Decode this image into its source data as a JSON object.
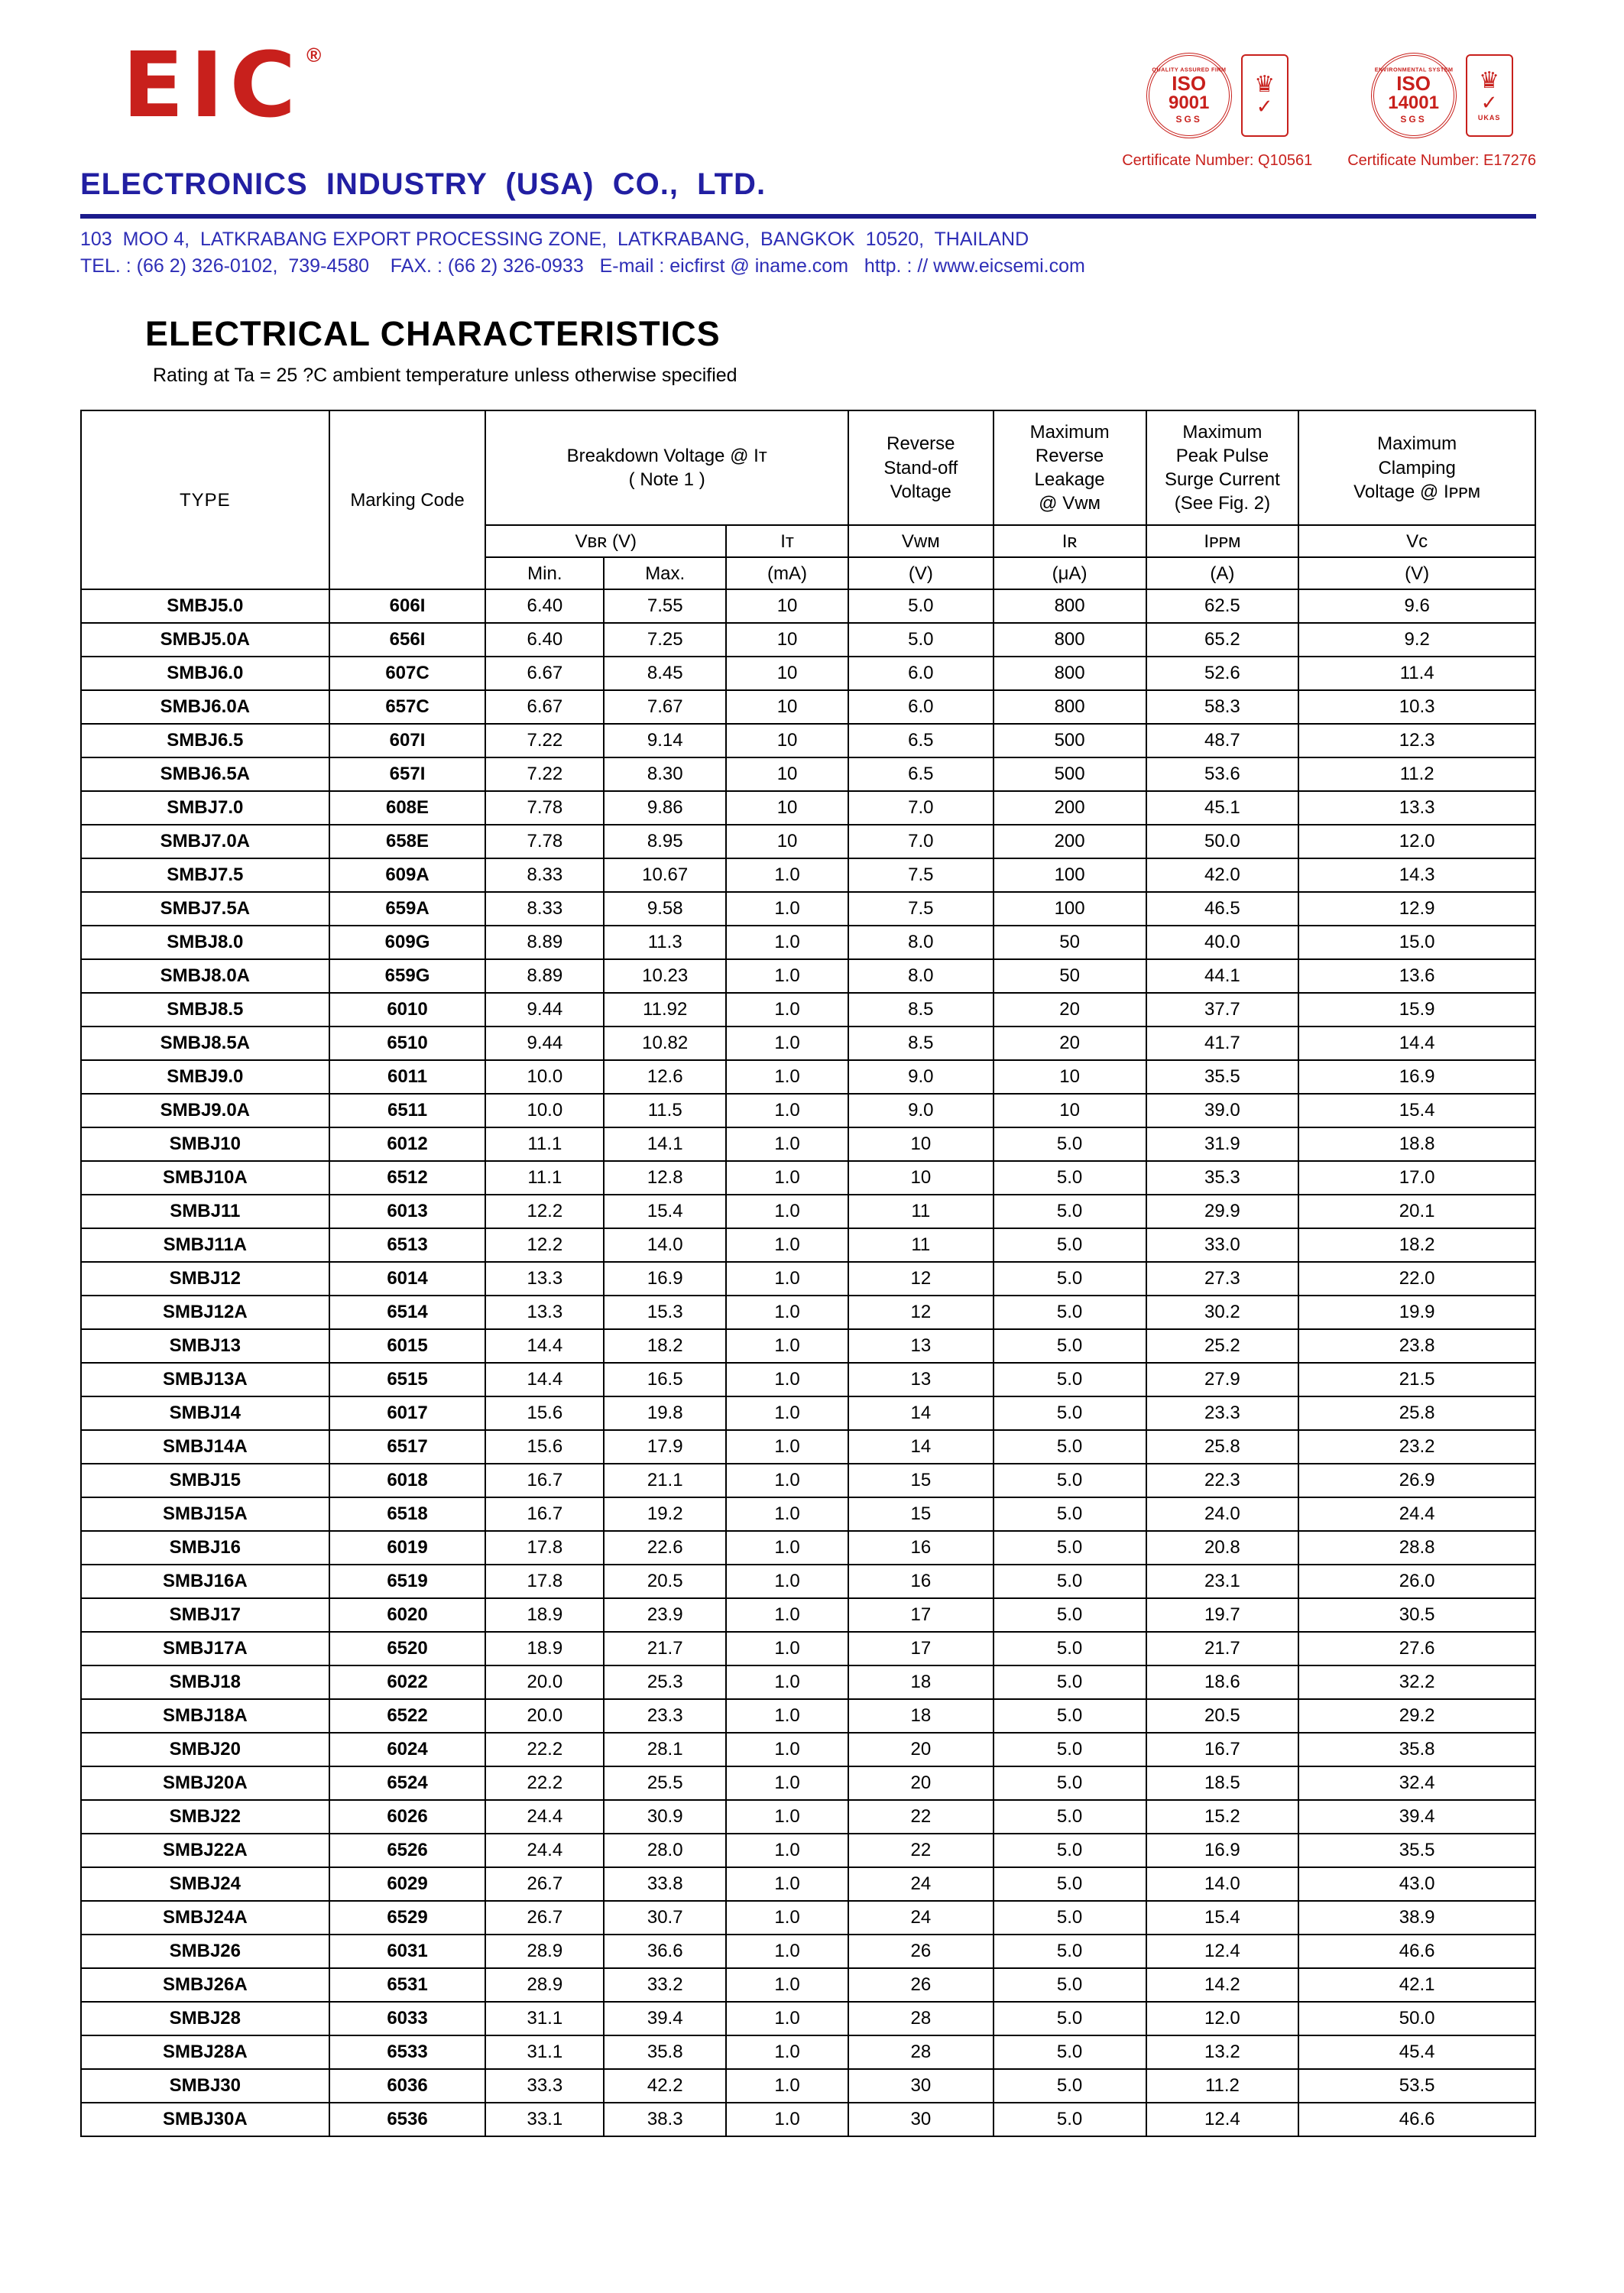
{
  "header": {
    "logo_text": "EIC",
    "registered_mark": "®",
    "company_name": "ELECTRONICS  INDUSTRY  (USA)  CO.,  LTD.",
    "address_line1": "103  MOO 4,  LATKRABANG EXPORT PROCESSING ZONE,  LATKRABANG,  BANGKOK  10520,  THAILAND",
    "address_line2": "TEL. : (66 2) 326-0102,  739-4580    FAX. : (66 2) 326-0933   E-mail : eicfirst @ iname.com   http. : // www.eicsemi.com",
    "badges": [
      {
        "ring_label": "QUALITY ASSURED FIRM",
        "iso_line1": "ISO",
        "iso_line2": "9001",
        "org": "SGS",
        "emblem_label": "",
        "certificate": "Certificate Number: Q10561"
      },
      {
        "ring_label": "ENVIRONMENTAL SYSTEM",
        "iso_line1": "ISO",
        "iso_line2": "14001",
        "org": "SGS",
        "emblem_label": "UKAS",
        "certificate": "Certificate Number: E17276"
      }
    ]
  },
  "icons": {
    "crown_glyph": "♛",
    "check_glyph": "✓"
  },
  "section": {
    "title": "ELECTRICAL CHARACTERISTICS",
    "subtitle": "Rating at Ta = 25 ?C ambient temperature unless otherwise specified"
  },
  "table": {
    "header": {
      "type": "TYPE",
      "marking": "Marking Code",
      "breakdown": "Breakdown Voltage @  Iᴛ\n( Note 1 )",
      "reverse_standoff": "Reverse\nStand-off\nVoltage",
      "max_reverse_leakage": "Maximum\nReverse\nLeakage\n@ Vᴡᴍ",
      "max_peak_pulse": "Maximum\nPeak Pulse\nSurge Current\n(See Fig. 2)",
      "max_clamping": "Maximum\nClamping\nVoltage @ Iᴘᴘᴍ",
      "vbr": "Vʙʀ  (V)",
      "it": "Iᴛ",
      "vwm": "Vᴡᴍ",
      "ir": "Iʀ",
      "ippm": "Iᴘᴘᴍ",
      "vc": "Vᴄ",
      "unit_min": "Min.",
      "unit_max": "Max.",
      "unit_it": "(mA)",
      "unit_vwm": "(V)",
      "unit_ir": "(μA)",
      "unit_ippm": "(A)",
      "unit_vc": "(V)"
    },
    "rows": [
      [
        "SMBJ5.0",
        "606I",
        "6.40",
        "7.55",
        "10",
        "5.0",
        "800",
        "62.5",
        "9.6"
      ],
      [
        "SMBJ5.0A",
        "656I",
        "6.40",
        "7.25",
        "10",
        "5.0",
        "800",
        "65.2",
        "9.2"
      ],
      [
        "SMBJ6.0",
        "607C",
        "6.67",
        "8.45",
        "10",
        "6.0",
        "800",
        "52.6",
        "11.4"
      ],
      [
        "SMBJ6.0A",
        "657C",
        "6.67",
        "7.67",
        "10",
        "6.0",
        "800",
        "58.3",
        "10.3"
      ],
      [
        "SMBJ6.5",
        "607I",
        "7.22",
        "9.14",
        "10",
        "6.5",
        "500",
        "48.7",
        "12.3"
      ],
      [
        "SMBJ6.5A",
        "657I",
        "7.22",
        "8.30",
        "10",
        "6.5",
        "500",
        "53.6",
        "11.2"
      ],
      [
        "SMBJ7.0",
        "608E",
        "7.78",
        "9.86",
        "10",
        "7.0",
        "200",
        "45.1",
        "13.3"
      ],
      [
        "SMBJ7.0A",
        "658E",
        "7.78",
        "8.95",
        "10",
        "7.0",
        "200",
        "50.0",
        "12.0"
      ],
      [
        "SMBJ7.5",
        "609A",
        "8.33",
        "10.67",
        "1.0",
        "7.5",
        "100",
        "42.0",
        "14.3"
      ],
      [
        "SMBJ7.5A",
        "659A",
        "8.33",
        "9.58",
        "1.0",
        "7.5",
        "100",
        "46.5",
        "12.9"
      ],
      [
        "SMBJ8.0",
        "609G",
        "8.89",
        "11.3",
        "1.0",
        "8.0",
        "50",
        "40.0",
        "15.0"
      ],
      [
        "SMBJ8.0A",
        "659G",
        "8.89",
        "10.23",
        "1.0",
        "8.0",
        "50",
        "44.1",
        "13.6"
      ],
      [
        "SMBJ8.5",
        "6010",
        "9.44",
        "11.92",
        "1.0",
        "8.5",
        "20",
        "37.7",
        "15.9"
      ],
      [
        "SMBJ8.5A",
        "6510",
        "9.44",
        "10.82",
        "1.0",
        "8.5",
        "20",
        "41.7",
        "14.4"
      ],
      [
        "SMBJ9.0",
        "6011",
        "10.0",
        "12.6",
        "1.0",
        "9.0",
        "10",
        "35.5",
        "16.9"
      ],
      [
        "SMBJ9.0A",
        "6511",
        "10.0",
        "11.5",
        "1.0",
        "9.0",
        "10",
        "39.0",
        "15.4"
      ],
      [
        "SMBJ10",
        "6012",
        "11.1",
        "14.1",
        "1.0",
        "10",
        "5.0",
        "31.9",
        "18.8"
      ],
      [
        "SMBJ10A",
        "6512",
        "11.1",
        "12.8",
        "1.0",
        "10",
        "5.0",
        "35.3",
        "17.0"
      ],
      [
        "SMBJ11",
        "6013",
        "12.2",
        "15.4",
        "1.0",
        "11",
        "5.0",
        "29.9",
        "20.1"
      ],
      [
        "SMBJ11A",
        "6513",
        "12.2",
        "14.0",
        "1.0",
        "11",
        "5.0",
        "33.0",
        "18.2"
      ],
      [
        "SMBJ12",
        "6014",
        "13.3",
        "16.9",
        "1.0",
        "12",
        "5.0",
        "27.3",
        "22.0"
      ],
      [
        "SMBJ12A",
        "6514",
        "13.3",
        "15.3",
        "1.0",
        "12",
        "5.0",
        "30.2",
        "19.9"
      ],
      [
        "SMBJ13",
        "6015",
        "14.4",
        "18.2",
        "1.0",
        "13",
        "5.0",
        "25.2",
        "23.8"
      ],
      [
        "SMBJ13A",
        "6515",
        "14.4",
        "16.5",
        "1.0",
        "13",
        "5.0",
        "27.9",
        "21.5"
      ],
      [
        "SMBJ14",
        "6017",
        "15.6",
        "19.8",
        "1.0",
        "14",
        "5.0",
        "23.3",
        "25.8"
      ],
      [
        "SMBJ14A",
        "6517",
        "15.6",
        "17.9",
        "1.0",
        "14",
        "5.0",
        "25.8",
        "23.2"
      ],
      [
        "SMBJ15",
        "6018",
        "16.7",
        "21.1",
        "1.0",
        "15",
        "5.0",
        "22.3",
        "26.9"
      ],
      [
        "SMBJ15A",
        "6518",
        "16.7",
        "19.2",
        "1.0",
        "15",
        "5.0",
        "24.0",
        "24.4"
      ],
      [
        "SMBJ16",
        "6019",
        "17.8",
        "22.6",
        "1.0",
        "16",
        "5.0",
        "20.8",
        "28.8"
      ],
      [
        "SMBJ16A",
        "6519",
        "17.8",
        "20.5",
        "1.0",
        "16",
        "5.0",
        "23.1",
        "26.0"
      ],
      [
        "SMBJ17",
        "6020",
        "18.9",
        "23.9",
        "1.0",
        "17",
        "5.0",
        "19.7",
        "30.5"
      ],
      [
        "SMBJ17A",
        "6520",
        "18.9",
        "21.7",
        "1.0",
        "17",
        "5.0",
        "21.7",
        "27.6"
      ],
      [
        "SMBJ18",
        "6022",
        "20.0",
        "25.3",
        "1.0",
        "18",
        "5.0",
        "18.6",
        "32.2"
      ],
      [
        "SMBJ18A",
        "6522",
        "20.0",
        "23.3",
        "1.0",
        "18",
        "5.0",
        "20.5",
        "29.2"
      ],
      [
        "SMBJ20",
        "6024",
        "22.2",
        "28.1",
        "1.0",
        "20",
        "5.0",
        "16.7",
        "35.8"
      ],
      [
        "SMBJ20A",
        "6524",
        "22.2",
        "25.5",
        "1.0",
        "20",
        "5.0",
        "18.5",
        "32.4"
      ],
      [
        "SMBJ22",
        "6026",
        "24.4",
        "30.9",
        "1.0",
        "22",
        "5.0",
        "15.2",
        "39.4"
      ],
      [
        "SMBJ22A",
        "6526",
        "24.4",
        "28.0",
        "1.0",
        "22",
        "5.0",
        "16.9",
        "35.5"
      ],
      [
        "SMBJ24",
        "6029",
        "26.7",
        "33.8",
        "1.0",
        "24",
        "5.0",
        "14.0",
        "43.0"
      ],
      [
        "SMBJ24A",
        "6529",
        "26.7",
        "30.7",
        "1.0",
        "24",
        "5.0",
        "15.4",
        "38.9"
      ],
      [
        "SMBJ26",
        "6031",
        "28.9",
        "36.6",
        "1.0",
        "26",
        "5.0",
        "12.4",
        "46.6"
      ],
      [
        "SMBJ26A",
        "6531",
        "28.9",
        "33.2",
        "1.0",
        "26",
        "5.0",
        "14.2",
        "42.1"
      ],
      [
        "SMBJ28",
        "6033",
        "31.1",
        "39.4",
        "1.0",
        "28",
        "5.0",
        "12.0",
        "50.0"
      ],
      [
        "SMBJ28A",
        "6533",
        "31.1",
        "35.8",
        "1.0",
        "28",
        "5.0",
        "13.2",
        "45.4"
      ],
      [
        "SMBJ30",
        "6036",
        "33.3",
        "42.2",
        "1.0",
        "30",
        "5.0",
        "11.2",
        "53.5"
      ],
      [
        "SMBJ30A",
        "6536",
        "33.1",
        "38.3",
        "1.0",
        "30",
        "5.0",
        "12.4",
        "46.6"
      ]
    ]
  }
}
